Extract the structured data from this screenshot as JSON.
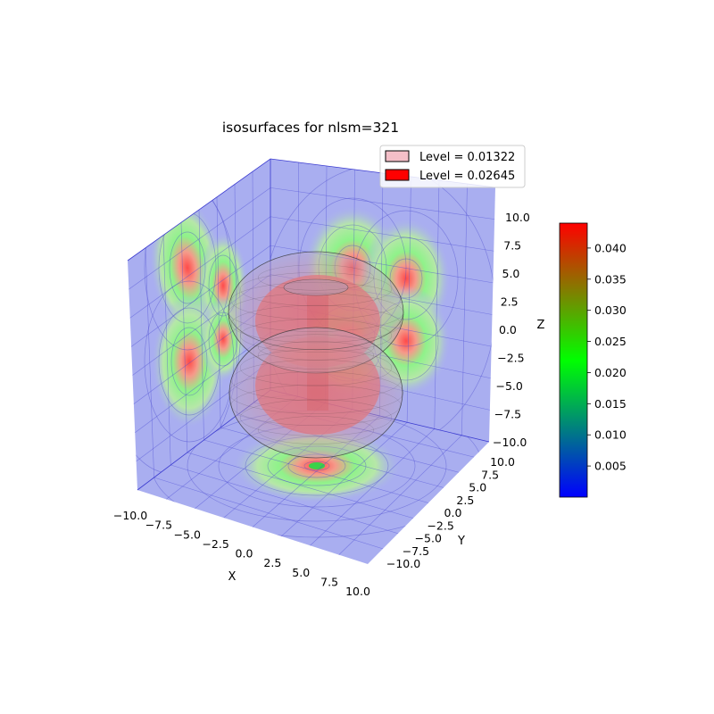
{
  "chart_data": {
    "type": "surface3d",
    "title": "isosurfaces for nlsm=321",
    "xlabel": "X",
    "ylabel": "Y",
    "zlabel": "Z",
    "xlim": [
      -10,
      10
    ],
    "ylim": [
      -10,
      10
    ],
    "zlim": [
      -10,
      10
    ],
    "x_ticks": [
      "−10.0",
      "−7.5",
      "−5.0",
      "−2.5",
      "0.0",
      "2.5",
      "5.0",
      "7.5",
      "10.0"
    ],
    "y_ticks": [
      "−10.0",
      "−7.5",
      "−5.0",
      "−2.5",
      "0.0",
      "2.5",
      "5.0",
      "7.5",
      "10.0"
    ],
    "z_ticks": [
      "−10.0",
      "−7.5",
      "−5.0",
      "−2.5",
      "0.0",
      "2.5",
      "5.0",
      "7.5",
      "10.0"
    ],
    "grid": true,
    "legend_position": "top-right",
    "series": [
      {
        "name": "Level = 0.01322",
        "level": 0.01322,
        "color": "#f4bfc8"
      },
      {
        "name": "Level = 0.02645",
        "level": 0.02645,
        "color": "#ff0000"
      }
    ],
    "colorbar": {
      "range": [
        0,
        0.044
      ],
      "ticks": [
        0.005,
        0.01,
        0.015,
        0.02,
        0.025,
        0.03,
        0.035,
        0.04
      ],
      "tick_labels": [
        "0.005",
        "0.010",
        "0.015",
        "0.020",
        "0.025",
        "0.030",
        "0.035",
        "0.040"
      ],
      "colors": [
        "#0000ff",
        "#00ff00",
        "#ff0000"
      ]
    },
    "pane_color": "#a9aef0"
  }
}
